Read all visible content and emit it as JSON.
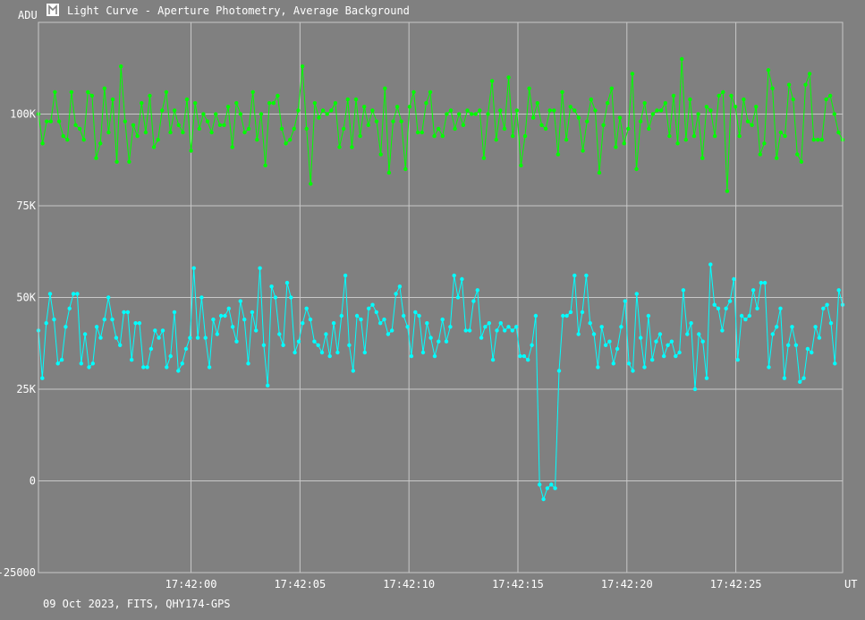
{
  "window": {
    "title": "Light Curve - Aperture Photometry, Average Background",
    "icon": "light-curve-app-icon"
  },
  "footer": {
    "info": "09 Oct 2023, FITS, QHY174-GPS"
  },
  "chart_data": {
    "type": "scatter",
    "title": "",
    "ylabel": "ADU",
    "xlabel": "UT",
    "ylim": [
      -25000,
      125000
    ],
    "xlim": [
      "17:41:53.0",
      "17:42:29.9"
    ],
    "y_ticks": [
      {
        "value": -25000,
        "label": "-25000"
      },
      {
        "value": 0,
        "label": "0"
      },
      {
        "value": 25000,
        "label": "25K"
      },
      {
        "value": 50000,
        "label": "50K"
      },
      {
        "value": 75000,
        "label": "75K"
      },
      {
        "value": 100000,
        "label": "100K"
      }
    ],
    "x_ticks": [
      {
        "value": "17:42:00",
        "label": "17:42:00"
      },
      {
        "value": "17:42:05",
        "label": "17:42:05"
      },
      {
        "value": "17:42:10",
        "label": "17:42:10"
      },
      {
        "value": "17:42:15",
        "label": "17:42:15"
      },
      {
        "value": "17:42:20",
        "label": "17:42:20"
      },
      {
        "value": "17:42:25",
        "label": "17:42:25"
      }
    ],
    "grid": true,
    "series": [
      {
        "color": "#00ff00",
        "values": [
          100000,
          92000,
          98000,
          98000,
          106000,
          98000,
          94000,
          93000,
          106000,
          97000,
          96000,
          93000,
          106000,
          105000,
          88000,
          92000,
          107000,
          95000,
          104000,
          87000,
          113000,
          98000,
          87000,
          97000,
          94000,
          103000,
          95000,
          105000,
          91000,
          93000,
          101000,
          106000,
          95000,
          101000,
          97000,
          95000,
          104000,
          90000,
          103000,
          96000,
          100000,
          98000,
          95000,
          100000,
          97000,
          97000,
          102000,
          91000,
          103000,
          100000,
          95000,
          96000,
          106000,
          93000,
          100000,
          86000,
          103000,
          103000,
          105000,
          96000,
          92000,
          93000,
          96000,
          101000,
          113000,
          96000,
          81000,
          103000,
          99000,
          101000,
          100000,
          101000,
          103000,
          91000,
          96000,
          104000,
          91000,
          104000,
          94000,
          102000,
          97000,
          101000,
          98000,
          89000,
          107000,
          84000,
          98000,
          102000,
          98000,
          85000,
          102000,
          106000,
          95000,
          95000,
          103000,
          106000,
          94000,
          96000,
          94000,
          100000,
          101000,
          96000,
          100000,
          97000,
          101000,
          100000,
          100000,
          101000,
          88000,
          100000,
          109000,
          93000,
          101000,
          96000,
          110000,
          94000,
          101000,
          86000,
          94000,
          107000,
          99000,
          103000,
          97000,
          96000,
          101000,
          101000,
          89000,
          106000,
          93000,
          102000,
          101000,
          99000,
          90000,
          98000,
          104000,
          101000,
          84000,
          97000,
          103000,
          107000,
          91000,
          99000,
          92000,
          96000,
          111000,
          85000,
          98000,
          103000,
          96000,
          100000,
          101000,
          101000,
          103000,
          94000,
          105000,
          92000,
          115000,
          93000,
          104000,
          94000,
          100000,
          88000,
          102000,
          101000,
          94000,
          105000,
          106000,
          79000,
          105000,
          102000,
          94000,
          104000,
          98000,
          97000,
          102000,
          89000,
          92000,
          112000,
          107000,
          88000,
          95000,
          94000,
          108000,
          104000,
          89000,
          87000,
          108000,
          111000,
          93000,
          93000,
          93000,
          104000,
          105000,
          100000,
          95000,
          93000
        ],
        "spread": "17:41:53.0–17:42:29.9, evenly spaced"
      },
      {
        "color": "#00ffff",
        "values": [
          41000,
          28000,
          43000,
          51000,
          44000,
          32000,
          33000,
          42000,
          47000,
          51000,
          51000,
          32000,
          40000,
          31000,
          32000,
          42000,
          39000,
          44000,
          50000,
          44000,
          39000,
          37000,
          46000,
          46000,
          33000,
          43000,
          43000,
          31000,
          31000,
          36000,
          41000,
          39000,
          41000,
          31000,
          34000,
          46000,
          30000,
          32000,
          36000,
          39000,
          58000,
          39000,
          50000,
          39000,
          31000,
          44000,
          40000,
          45000,
          45000,
          47000,
          42000,
          38000,
          49000,
          44000,
          32000,
          46000,
          41000,
          58000,
          37000,
          26000,
          53000,
          50000,
          40000,
          37000,
          54000,
          50000,
          35000,
          38000,
          43000,
          47000,
          44000,
          38000,
          37000,
          35000,
          40000,
          34000,
          43000,
          35000,
          45000,
          56000,
          37000,
          30000,
          45000,
          44000,
          35000,
          47000,
          48000,
          46000,
          43000,
          44000,
          40000,
          41000,
          51000,
          53000,
          45000,
          42000,
          34000,
          46000,
          45000,
          35000,
          43000,
          39000,
          34000,
          38000,
          44000,
          38000,
          42000,
          56000,
          50000,
          55000,
          41000,
          41000,
          49000,
          52000,
          39000,
          42000,
          43000,
          33000,
          41000,
          43000,
          41000,
          42000,
          41000,
          42000,
          34000,
          34000,
          33000,
          37000,
          45000,
          -1000,
          -5000,
          -2000,
          -1000,
          -2000,
          30000,
          45000,
          45000,
          46000,
          56000,
          40000,
          46000,
          56000,
          43000,
          40000,
          31000,
          42000,
          37000,
          38000,
          32000,
          36000,
          42000,
          49000,
          32000,
          30000,
          51000,
          39000,
          31000,
          45000,
          33000,
          38000,
          40000,
          34000,
          37000,
          38000,
          34000,
          35000,
          52000,
          40000,
          43000,
          25000,
          40000,
          38000,
          28000,
          59000,
          48000,
          47000,
          41000,
          47000,
          49000,
          55000,
          33000,
          45000,
          44000,
          45000,
          52000,
          47000,
          54000,
          54000,
          31000,
          40000,
          42000,
          47000,
          28000,
          37000,
          42000,
          37000,
          27000,
          28000,
          36000,
          35000,
          42000,
          39000,
          47000,
          48000,
          43000,
          32000,
          52000,
          48000
        ],
        "spread": "17:41:53.0–17:42:29.9, evenly spaced"
      }
    ]
  }
}
